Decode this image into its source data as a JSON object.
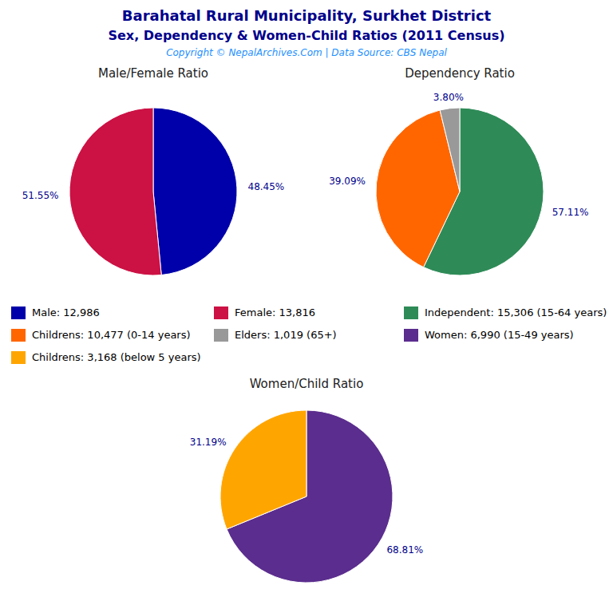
{
  "title": "Barahatal Rural Municipality, Surkhet District",
  "subtitle": "Sex, Dependency & Women-Child Ratios (2011 Census)",
  "annotations": [
    "Copyright © NepalArchives.Com | Data Source: CBS Nepal"
  ],
  "chart_data": [
    {
      "type": "pie",
      "title": "Male/Female Ratio",
      "categories": [
        "Male: 12,986",
        "Female: 13,816"
      ],
      "values": [
        48.45,
        51.55
      ],
      "value_labels": [
        "48.45%",
        "51.55%"
      ],
      "colors": [
        "#0000AA",
        "#CC1144"
      ],
      "data_labels": true,
      "legend": "center"
    },
    {
      "type": "pie",
      "title": "Dependency Ratio",
      "categories": [
        "Independent: 15,306 (15-64 years)",
        "Childrens: 10,477 (0-14 years)",
        "Elders: 1,019 (65+)"
      ],
      "values": [
        57.11,
        39.09,
        3.8
      ],
      "value_labels": [
        "57.11%",
        "39.09%",
        "3.80%"
      ],
      "colors": [
        "#2E8B57",
        "#FF6600",
        "#999999"
      ],
      "data_labels": true,
      "legend": "center"
    },
    {
      "type": "pie",
      "title": "Women/Child Ratio",
      "categories": [
        "Women: 6,990 (15-49 years)",
        "Childrens: 3,168 (below 5 years)"
      ],
      "values": [
        68.81,
        31.19
      ],
      "value_labels": [
        "68.81%",
        "31.19%"
      ],
      "colors": [
        "#5B2D8E",
        "#FFA500"
      ],
      "data_labels": true,
      "legend": "center"
    }
  ]
}
